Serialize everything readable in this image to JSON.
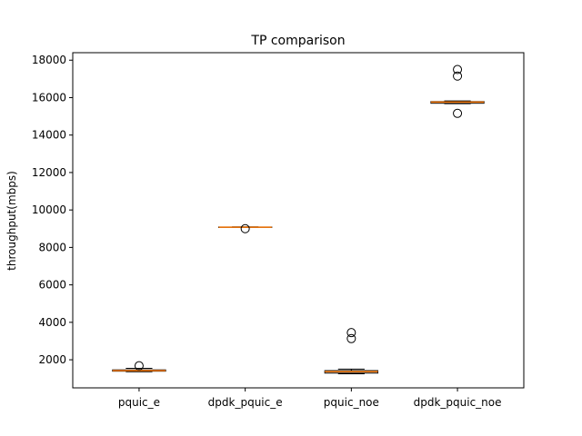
{
  "chart_data": {
    "type": "box",
    "title": "TP comparison",
    "xlabel": "",
    "ylabel": "throughput(mbps)",
    "ylim": [
      500,
      18400
    ],
    "yticks": [
      2000,
      4000,
      6000,
      8000,
      10000,
      12000,
      14000,
      16000,
      18000
    ],
    "ytick_labels": [
      "2000",
      "4000",
      "6000",
      "8000",
      "10000",
      "12000",
      "14000",
      "16000",
      "18000"
    ],
    "categories": [
      "pquic_e",
      "dpdk_pquic_e",
      "pquic_noe",
      "dpdk_pquic_noe"
    ],
    "boxes": [
      {
        "whisker_low": 1360,
        "q1": 1390,
        "median": 1420,
        "q3": 1460,
        "whisker_high": 1540,
        "outliers": [
          1680
        ]
      },
      {
        "whisker_low": 9060,
        "q1": 9070,
        "median": 9080,
        "q3": 9090,
        "whisker_high": 9100,
        "outliers": [
          9000
        ]
      },
      {
        "whisker_low": 1250,
        "q1": 1290,
        "median": 1370,
        "q3": 1420,
        "whisker_high": 1500,
        "outliers": [
          3130,
          3450
        ]
      },
      {
        "whisker_low": 15680,
        "q1": 15700,
        "median": 15760,
        "q3": 15790,
        "whisker_high": 15820,
        "outliers": [
          15160,
          17150,
          17500
        ]
      }
    ],
    "colors": {
      "box": "#000000",
      "median": "#ff7f0e",
      "outlier_edge": "#000000"
    },
    "grid": false,
    "legend": "none"
  }
}
